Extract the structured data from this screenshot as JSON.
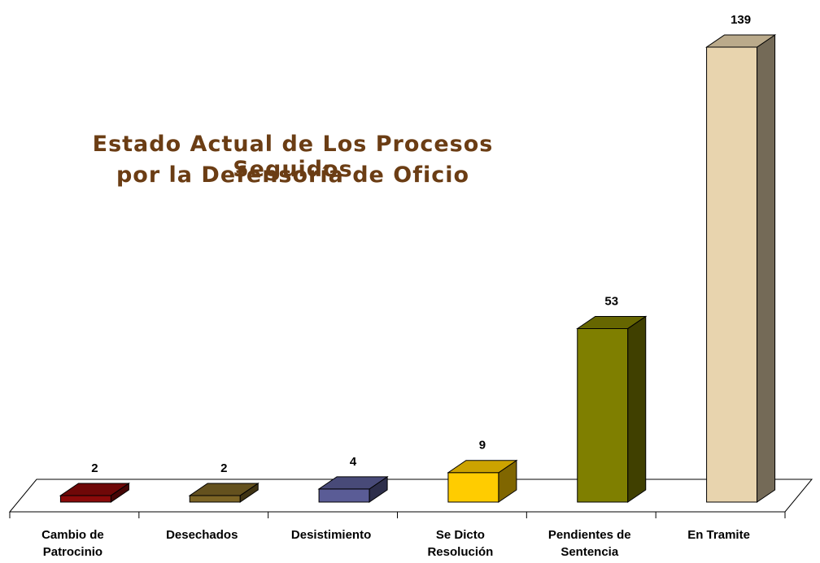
{
  "chart_data": {
    "type": "bar3d",
    "title": [
      "Estado Actual de Los Procesos Seguidos",
      "por la Defensoría de Oficio"
    ],
    "categories": [
      "Cambio de Patrocinio",
      "Desechados",
      "Desistimiento",
      "Se Dicto Resolución",
      "Pendientes de Sentencia",
      "En Tramite"
    ],
    "values": [
      2,
      2,
      4,
      9,
      53,
      139
    ],
    "colors": [
      "#8b0a0a",
      "#7d6525",
      "#5a5c96",
      "#ffcc00",
      "#7f7f00",
      "#e8d4ae"
    ]
  }
}
